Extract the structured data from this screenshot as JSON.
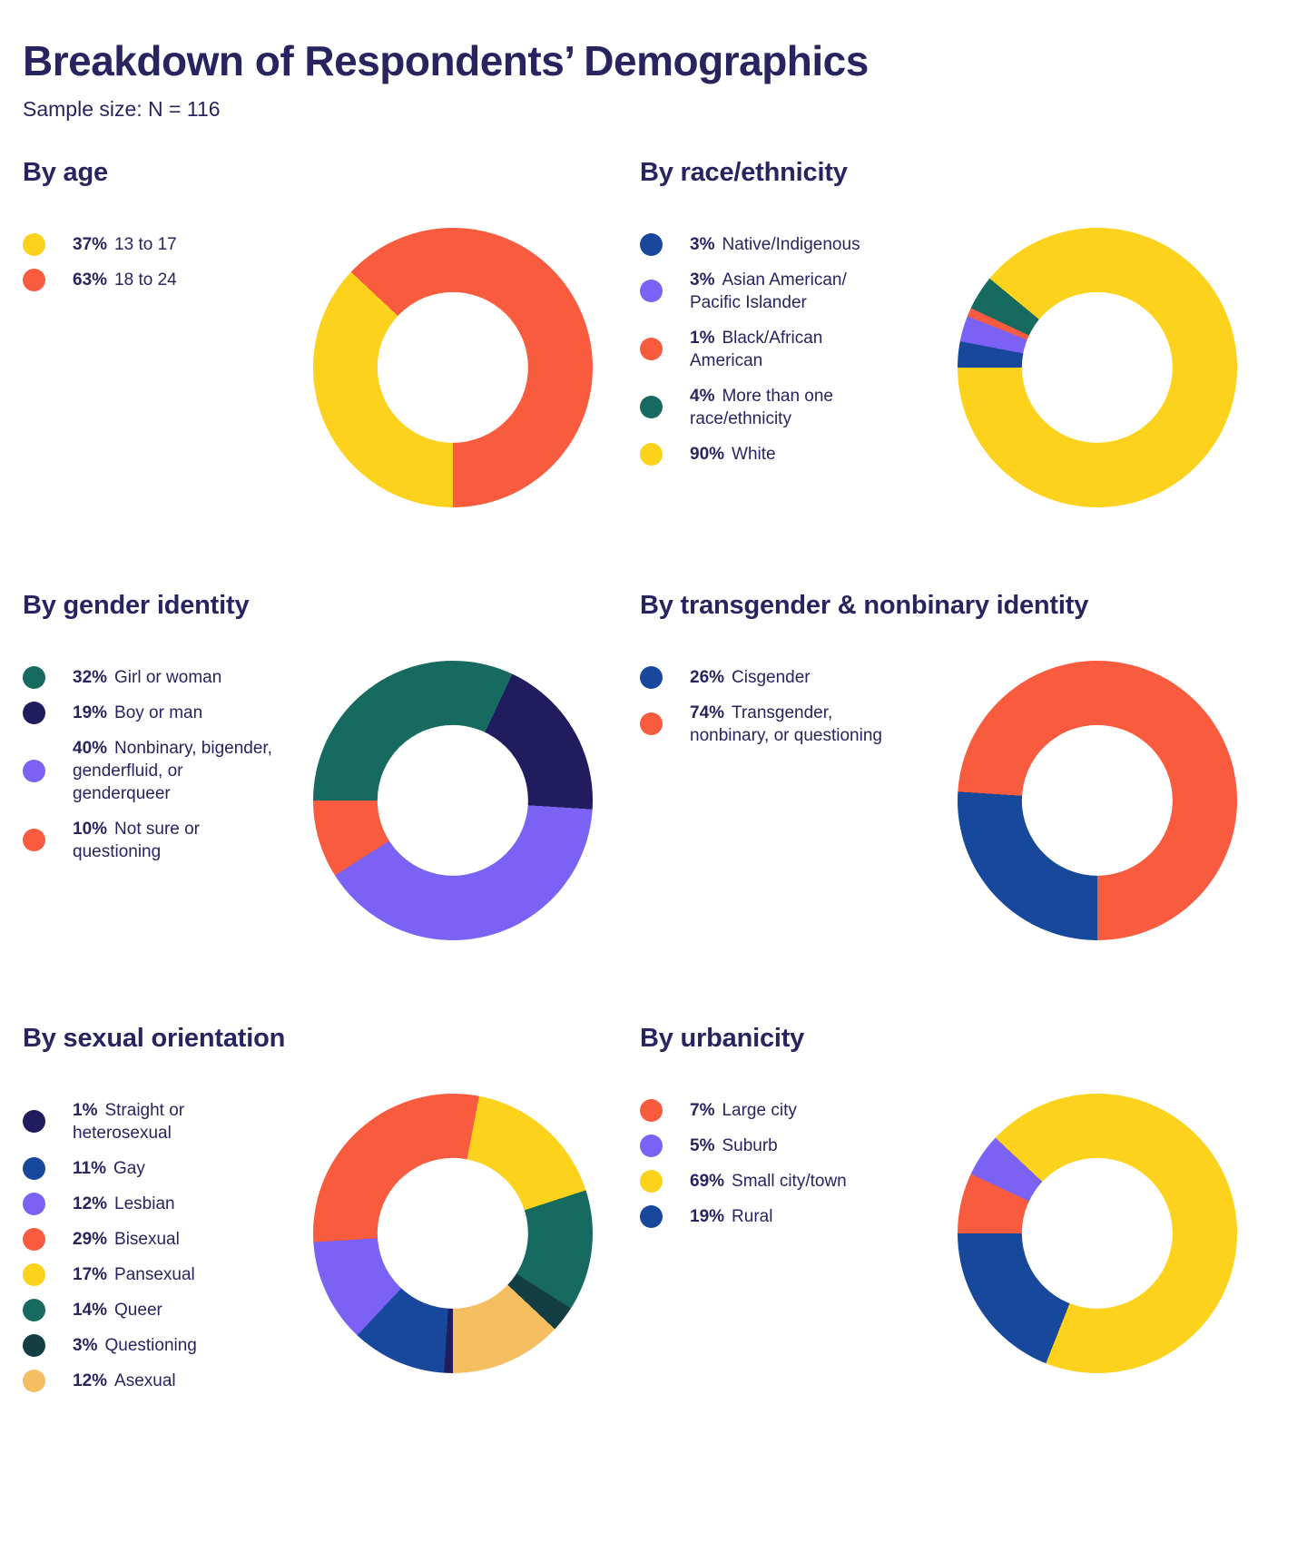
{
  "title": "Breakdown of Respondents’ Demographics",
  "subtitle": "Sample size: N = 116",
  "text_color": "#282460",
  "chart_data": [
    {
      "type": "donut",
      "title": "By age",
      "start_angle": 180,
      "categories": [
        "13 to 17",
        "18 to 24"
      ],
      "values": [
        37,
        63
      ],
      "pct_labels": [
        "37%",
        "63%"
      ],
      "colors": [
        "#fcd21c",
        "#f95b3e"
      ],
      "legend_position": "left"
    },
    {
      "type": "donut",
      "title": "By race/ethnicity",
      "start_angle": 270,
      "categories": [
        "Native/Indigenous",
        "Asian American/ Pacific Islander",
        "Black/African American",
        "More than one race/ethnicity",
        "White"
      ],
      "values": [
        3,
        3,
        1,
        4,
        90
      ],
      "pct_labels": [
        "3%",
        "3%",
        "1%",
        "4%",
        "90%"
      ],
      "colors": [
        "#17489c",
        "#7b61f4",
        "#f95b3e",
        "#166a5f",
        "#fcd21c"
      ],
      "legend_position": "left"
    },
    {
      "type": "donut",
      "title": "By gender identity",
      "start_angle": 270,
      "categories": [
        "Girl or woman",
        "Boy or man",
        "Nonbinary, bigender, genderfluid, or genderqueer",
        "Not sure or questioning"
      ],
      "values": [
        32,
        19,
        40,
        10
      ],
      "pct_labels": [
        "32%",
        "19%",
        "40%",
        "10%"
      ],
      "colors": [
        "#166a5f",
        "#201c5e",
        "#7b61f4",
        "#f95b3e"
      ],
      "legend_position": "left"
    },
    {
      "type": "donut",
      "title": "By transgender & nonbinary identity",
      "start_angle": 180,
      "categories": [
        "Cisgender",
        "Transgender, nonbinary, or questioning"
      ],
      "values": [
        26,
        74
      ],
      "pct_labels": [
        "26%",
        "74%"
      ],
      "colors": [
        "#17489c",
        "#f95b3e"
      ],
      "legend_position": "left"
    },
    {
      "type": "donut",
      "title": "By sexual orientation",
      "start_angle": 180,
      "categories": [
        "Straight or heterosexual",
        "Gay",
        "Lesbian",
        "Bisexual",
        "Pansexual",
        "Queer",
        "Questioning",
        "Asexual"
      ],
      "values": [
        1,
        11,
        12,
        29,
        17,
        14,
        3,
        12
      ],
      "pct_labels": [
        "1%",
        "11%",
        "12%",
        "29%",
        "17%",
        "14%",
        "3%",
        "12%"
      ],
      "colors": [
        "#201c5e",
        "#17489c",
        "#7b61f4",
        "#f95b3e",
        "#fcd21c",
        "#166a5f",
        "#123e44",
        "#f5bf61"
      ],
      "legend_position": "left"
    },
    {
      "type": "donut",
      "title": "By urbanicity",
      "start_angle": 270,
      "categories": [
        "Large city",
        "Suburb",
        "Small city/town",
        "Rural"
      ],
      "values": [
        7,
        5,
        69,
        19
      ],
      "pct_labels": [
        "7%",
        "5%",
        "69%",
        "19%"
      ],
      "colors": [
        "#f95b3e",
        "#7b61f4",
        "#fcd21c",
        "#17489c"
      ],
      "legend_position": "left"
    }
  ]
}
